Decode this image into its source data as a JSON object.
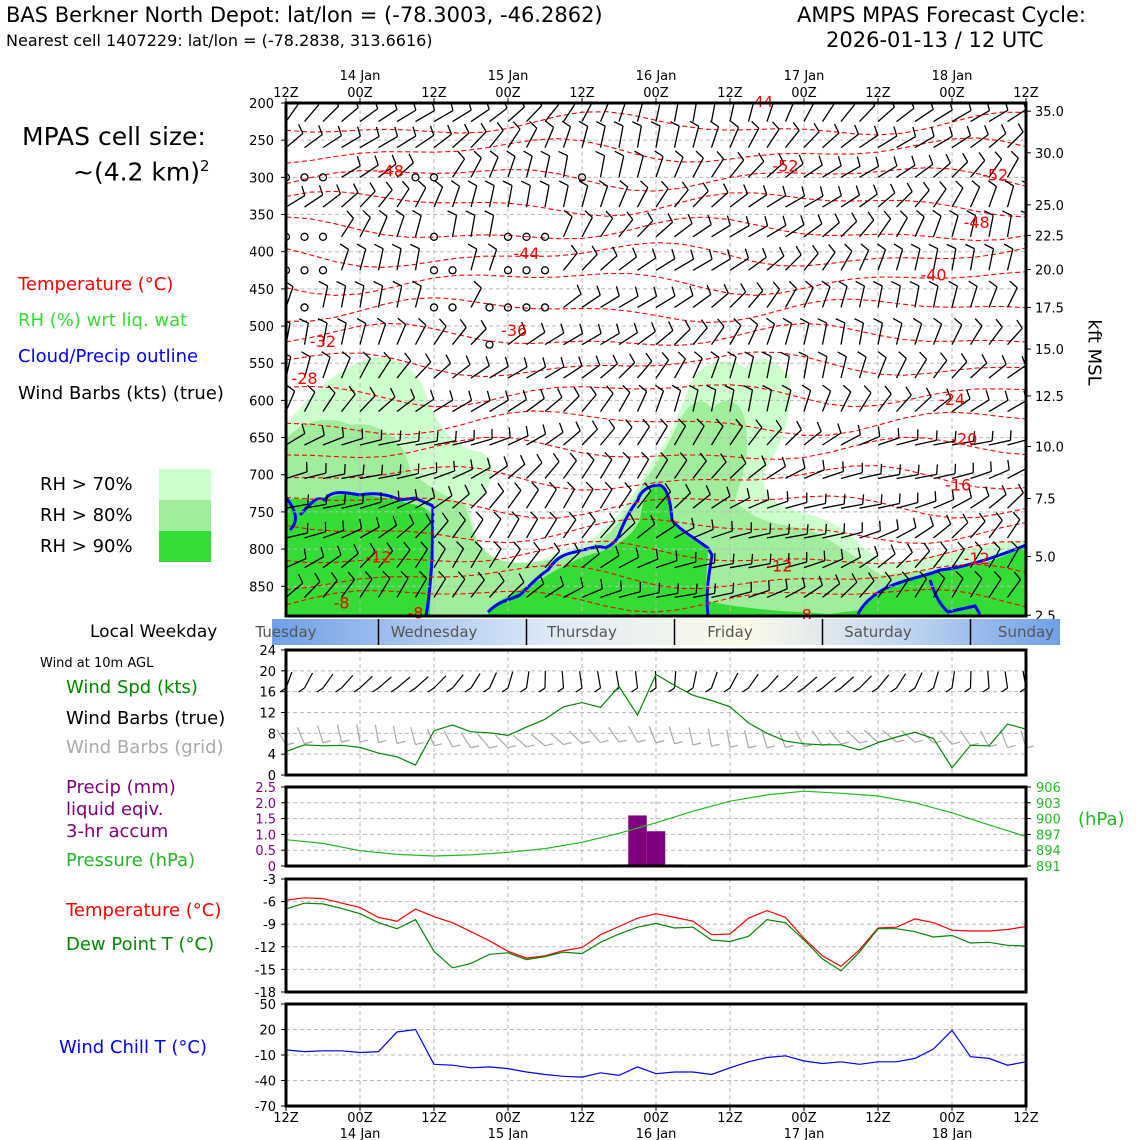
{
  "header": {
    "station": "BAS Berkner North Depot: lat/lon = (-78.3003, -46.2862)",
    "cell": "Nearest cell 1407229: lat/lon = (-78.2838, 313.6616)",
    "cycle_title": "AMPS MPAS Forecast Cycle:",
    "cycle_date": "2026-01-13 / 12 UTC"
  },
  "sidebar": {
    "cell_size_label": "MPAS cell size:",
    "cell_size_value": "~(4.2 km)",
    "cell_size_exp": "2",
    "legend_temp": "Temperature (°C)",
    "legend_rh": "RH (%) wrt liq. wat",
    "legend_cloud": "Cloud/Precip outline",
    "legend_barbs": "Wind Barbs (kts) (true)",
    "rh70": "RH > 70%",
    "rh80": "RH > 80%",
    "rh90": "RH > 90%",
    "local_weekday": "Local Weekday",
    "wind_10m": "Wind at 10m AGL",
    "wind_spd": "Wind Spd (kts)",
    "wind_barbs_true": "Wind Barbs (true)",
    "wind_barbs_grid": "Wind Barbs (grid)",
    "precip1": "Precip (mm)",
    "precip2": "liquid eqiv.",
    "precip3": "3-hr accum",
    "pressure": "Pressure (hPa)",
    "temp": "Temperature (°C)",
    "dewpoint": "Dew Point T (°C)",
    "windchill": "Wind Chill T (°C)",
    "hpa_unit": "(hPa)",
    "kft_label": "kft MSL"
  },
  "colors": {
    "temp": "#ff0000",
    "rh": "#33dd33",
    "cloud": "#0000ff",
    "green_line": "#008800",
    "precip": "#800080",
    "pressure": "#22bb22",
    "rh70": "#ccffcc",
    "rh80": "#a0ee9c",
    "rh90": "#33dd33"
  },
  "chart_data": [
    {
      "type": "contour",
      "name": "cross-section",
      "x_ticks_top": [
        {
          "hour": 0,
          "label": "12Z",
          "date": ""
        },
        {
          "hour": 12,
          "label": "00Z",
          "date": "14 Jan"
        },
        {
          "hour": 24,
          "label": "12Z",
          "date": ""
        },
        {
          "hour": 36,
          "label": "00Z",
          "date": "15 Jan"
        },
        {
          "hour": 48,
          "label": "12Z",
          "date": ""
        },
        {
          "hour": 60,
          "label": "00Z",
          "date": "16 Jan"
        },
        {
          "hour": 72,
          "label": "12Z",
          "date": ""
        },
        {
          "hour": 84,
          "label": "00Z",
          "date": "17 Jan"
        },
        {
          "hour": 96,
          "label": "12Z",
          "date": ""
        },
        {
          "hour": 108,
          "label": "00Z",
          "date": "18 Jan"
        },
        {
          "hour": 120,
          "label": "12Z",
          "date": ""
        }
      ],
      "pressure_ticks": [
        "200",
        "250",
        "300",
        "350",
        "400",
        "450",
        "500",
        "550",
        "600",
        "650",
        "700",
        "750",
        "800",
        "850"
      ],
      "pressure_range": [
        200,
        890
      ],
      "height_ticks": [
        {
          "p": 211,
          "label": "35.0"
        },
        {
          "p": 267,
          "label": "30.0"
        },
        {
          "p": 337,
          "label": "25.0"
        },
        {
          "p": 378,
          "label": "22.5"
        },
        {
          "p": 424,
          "label": "20.0"
        },
        {
          "p": 475,
          "label": "17.5"
        },
        {
          "p": 531,
          "label": "15.0"
        },
        {
          "p": 594,
          "label": "12.5"
        },
        {
          "p": 662,
          "label": "10.0"
        },
        {
          "p": 732,
          "label": "7.5"
        },
        {
          "p": 810,
          "label": "5.0"
        },
        {
          "p": 889,
          "label": "2.5"
        }
      ],
      "temp_labels": [
        {
          "hour": 17,
          "p": 291,
          "text": "-48"
        },
        {
          "hour": 81,
          "p": 284,
          "text": "-52"
        },
        {
          "hour": 115,
          "p": 296,
          "text": "-52"
        },
        {
          "hour": 112,
          "p": 360,
          "text": "-48"
        },
        {
          "hour": 39,
          "p": 402,
          "text": "-44"
        },
        {
          "hour": 105,
          "p": 431,
          "text": "-40"
        },
        {
          "hour": 37,
          "p": 505,
          "text": "-36"
        },
        {
          "hour": 6,
          "p": 520,
          "text": "-32"
        },
        {
          "hour": 3,
          "p": 570,
          "text": "-28"
        },
        {
          "hour": 108,
          "p": 598,
          "text": "-24"
        },
        {
          "hour": 110,
          "p": 651,
          "text": "-20"
        },
        {
          "hour": 109,
          "p": 713,
          "text": "-16"
        },
        {
          "hour": 15,
          "p": 810,
          "text": "-12"
        },
        {
          "hour": 80,
          "p": 822,
          "text": "-12"
        },
        {
          "hour": 112,
          "p": 812,
          "text": "-12"
        },
        {
          "hour": 9,
          "p": 872,
          "text": "-8"
        },
        {
          "hour": 21,
          "p": 885,
          "text": "-8"
        },
        {
          "hour": 84,
          "p": 888,
          "text": "-8"
        }
      ],
      "top_cut_label": "-44"
    },
    {
      "type": "category-band",
      "name": "weekday",
      "labels": [
        {
          "hour": 0,
          "text": "Tuesday"
        },
        {
          "hour": 24,
          "text": "Wednesday"
        },
        {
          "hour": 48,
          "text": "Thursday"
        },
        {
          "hour": 72,
          "text": "Friday"
        },
        {
          "hour": 96,
          "text": "Saturday"
        },
        {
          "hour": 120,
          "text": "Sunday"
        }
      ],
      "boundaries": [
        15,
        39,
        63,
        87,
        111
      ]
    },
    {
      "type": "line",
      "name": "wind-speed",
      "ylabel": "Wind Spd (kts)",
      "ylim": [
        0,
        24
      ],
      "yticks": [
        "0",
        "4",
        "8",
        "12",
        "16",
        "20",
        "24"
      ],
      "x": [
        0,
        3,
        6,
        9,
        12,
        15,
        18,
        21,
        24,
        27,
        30,
        33,
        36,
        39,
        42,
        45,
        48,
        51,
        54,
        57,
        60,
        63,
        66,
        69,
        72,
        75,
        78,
        81,
        84,
        87,
        90,
        93,
        96,
        99,
        102,
        105,
        108,
        111,
        114,
        117,
        120
      ],
      "values": [
        4.5,
        5.8,
        5.6,
        5.7,
        5.3,
        4.2,
        3.5,
        1.9,
        8.5,
        9.6,
        8.3,
        8.1,
        7.6,
        9.2,
        10.7,
        13.1,
        13.9,
        13.0,
        17.0,
        11.5,
        19.3,
        17.2,
        15.3,
        14.3,
        13.1,
        10.0,
        8.0,
        6.5,
        6.0,
        5.8,
        5.8,
        4.8,
        6.2,
        7.3,
        8.2,
        7.0,
        1.4,
        5.7,
        5.6,
        9.8,
        8.8
      ]
    },
    {
      "type": "bar+line",
      "name": "precip-pressure",
      "precip_ylim": [
        0,
        2.5
      ],
      "precip_ticks": [
        "0",
        "0.5",
        "1.0",
        "1.5",
        "2.0",
        "2.5"
      ],
      "precip_bars": [
        {
          "hour": 54,
          "value": 0.05
        },
        {
          "hour": 57,
          "value": 1.6
        },
        {
          "hour": 60,
          "value": 1.1
        },
        {
          "hour": 63,
          "value": 0.05
        }
      ],
      "pressure_ylim": [
        891,
        906
      ],
      "pressure_ticks": [
        "891",
        "894",
        "897",
        "900",
        "903",
        "906"
      ],
      "x": [
        0,
        6,
        12,
        18,
        24,
        30,
        36,
        42,
        48,
        54,
        60,
        66,
        72,
        78,
        84,
        90,
        96,
        102,
        108,
        114,
        120
      ],
      "pressure": [
        896.0,
        895.3,
        893.9,
        893.2,
        892.9,
        893.1,
        893.6,
        894.3,
        895.5,
        897.2,
        899.2,
        901.4,
        903.3,
        904.5,
        905.2,
        904.8,
        904.3,
        903.0,
        901.1,
        898.8,
        896.6
      ]
    },
    {
      "type": "line",
      "name": "temperature-dewpoint",
      "ylim": [
        -18,
        -3
      ],
      "yticks": [
        "-3",
        "-6",
        "-9",
        "-12",
        "-15",
        "-18"
      ],
      "x": [
        0,
        3,
        6,
        9,
        12,
        15,
        18,
        21,
        24,
        27,
        30,
        33,
        36,
        39,
        42,
        45,
        48,
        51,
        54,
        57,
        60,
        63,
        66,
        69,
        72,
        75,
        78,
        81,
        84,
        87,
        90,
        93,
        96,
        99,
        102,
        105,
        108,
        111,
        114,
        117,
        120
      ],
      "series": [
        {
          "name": "Temperature",
          "color": "#ff0000",
          "values": [
            -5.8,
            -5.5,
            -5.6,
            -6.2,
            -6.8,
            -8.1,
            -8.6,
            -7.0,
            -8.0,
            -8.8,
            -10.0,
            -11.2,
            -12.6,
            -13.5,
            -13.2,
            -12.5,
            -12.1,
            -10.4,
            -9.3,
            -8.2,
            -7.6,
            -8.1,
            -8.6,
            -10.4,
            -10.3,
            -8.2,
            -7.2,
            -8.1,
            -10.9,
            -13.2,
            -14.6,
            -12.4,
            -9.5,
            -9.4,
            -8.3,
            -8.8,
            -9.8,
            -9.9,
            -9.9,
            -9.7,
            -9.3
          ]
        },
        {
          "name": "Dew Point",
          "color": "#008800",
          "values": [
            -7.0,
            -6.2,
            -6.3,
            -6.9,
            -7.6,
            -8.8,
            -9.6,
            -8.4,
            -12.6,
            -14.8,
            -14.2,
            -13.0,
            -12.8,
            -13.7,
            -13.3,
            -12.7,
            -12.9,
            -11.4,
            -10.3,
            -9.4,
            -8.9,
            -9.5,
            -9.4,
            -11.1,
            -11.3,
            -10.6,
            -8.4,
            -8.8,
            -11.1,
            -13.6,
            -15.2,
            -12.7,
            -9.6,
            -9.6,
            -10.0,
            -10.7,
            -10.5,
            -11.5,
            -11.4,
            -11.8,
            -11.9
          ]
        }
      ]
    },
    {
      "type": "line",
      "name": "wind-chill",
      "ylabel": "Wind Chill T (°C)",
      "ylim": [
        -70,
        50
      ],
      "yticks": [
        "50",
        "20",
        "-10",
        "-40",
        "-70"
      ],
      "x": [
        0,
        3,
        6,
        9,
        12,
        15,
        18,
        21,
        24,
        27,
        30,
        33,
        36,
        39,
        42,
        45,
        48,
        51,
        54,
        57,
        60,
        63,
        66,
        69,
        72,
        75,
        78,
        81,
        84,
        87,
        90,
        93,
        96,
        99,
        102,
        105,
        108,
        111,
        114,
        117,
        120
      ],
      "values": [
        -4,
        -6,
        -5,
        -5,
        -7,
        -6,
        17,
        20,
        -21,
        -22,
        -25,
        -24,
        -26,
        -30,
        -33,
        -35,
        -36,
        -31,
        -34,
        -24,
        -32,
        -30,
        -30,
        -33,
        -25,
        -18,
        -13,
        -11,
        -17,
        -20,
        -18,
        -21,
        -18,
        -18,
        -14,
        -3,
        19,
        -12,
        -14,
        -22,
        -18
      ]
    }
  ],
  "bottom_axis": [
    {
      "hour": 0,
      "label": "12Z",
      "date": ""
    },
    {
      "hour": 12,
      "label": "00Z",
      "date": "14 Jan"
    },
    {
      "hour": 24,
      "label": "12Z",
      "date": ""
    },
    {
      "hour": 36,
      "label": "00Z",
      "date": "15 Jan"
    },
    {
      "hour": 48,
      "label": "12Z",
      "date": ""
    },
    {
      "hour": 60,
      "label": "00Z",
      "date": "16 Jan"
    },
    {
      "hour": 72,
      "label": "12Z",
      "date": ""
    },
    {
      "hour": 84,
      "label": "00Z",
      "date": "17 Jan"
    },
    {
      "hour": 96,
      "label": "12Z",
      "date": ""
    },
    {
      "hour": 108,
      "label": "00Z",
      "date": "18 Jan"
    },
    {
      "hour": 120,
      "label": "12Z",
      "date": ""
    }
  ]
}
